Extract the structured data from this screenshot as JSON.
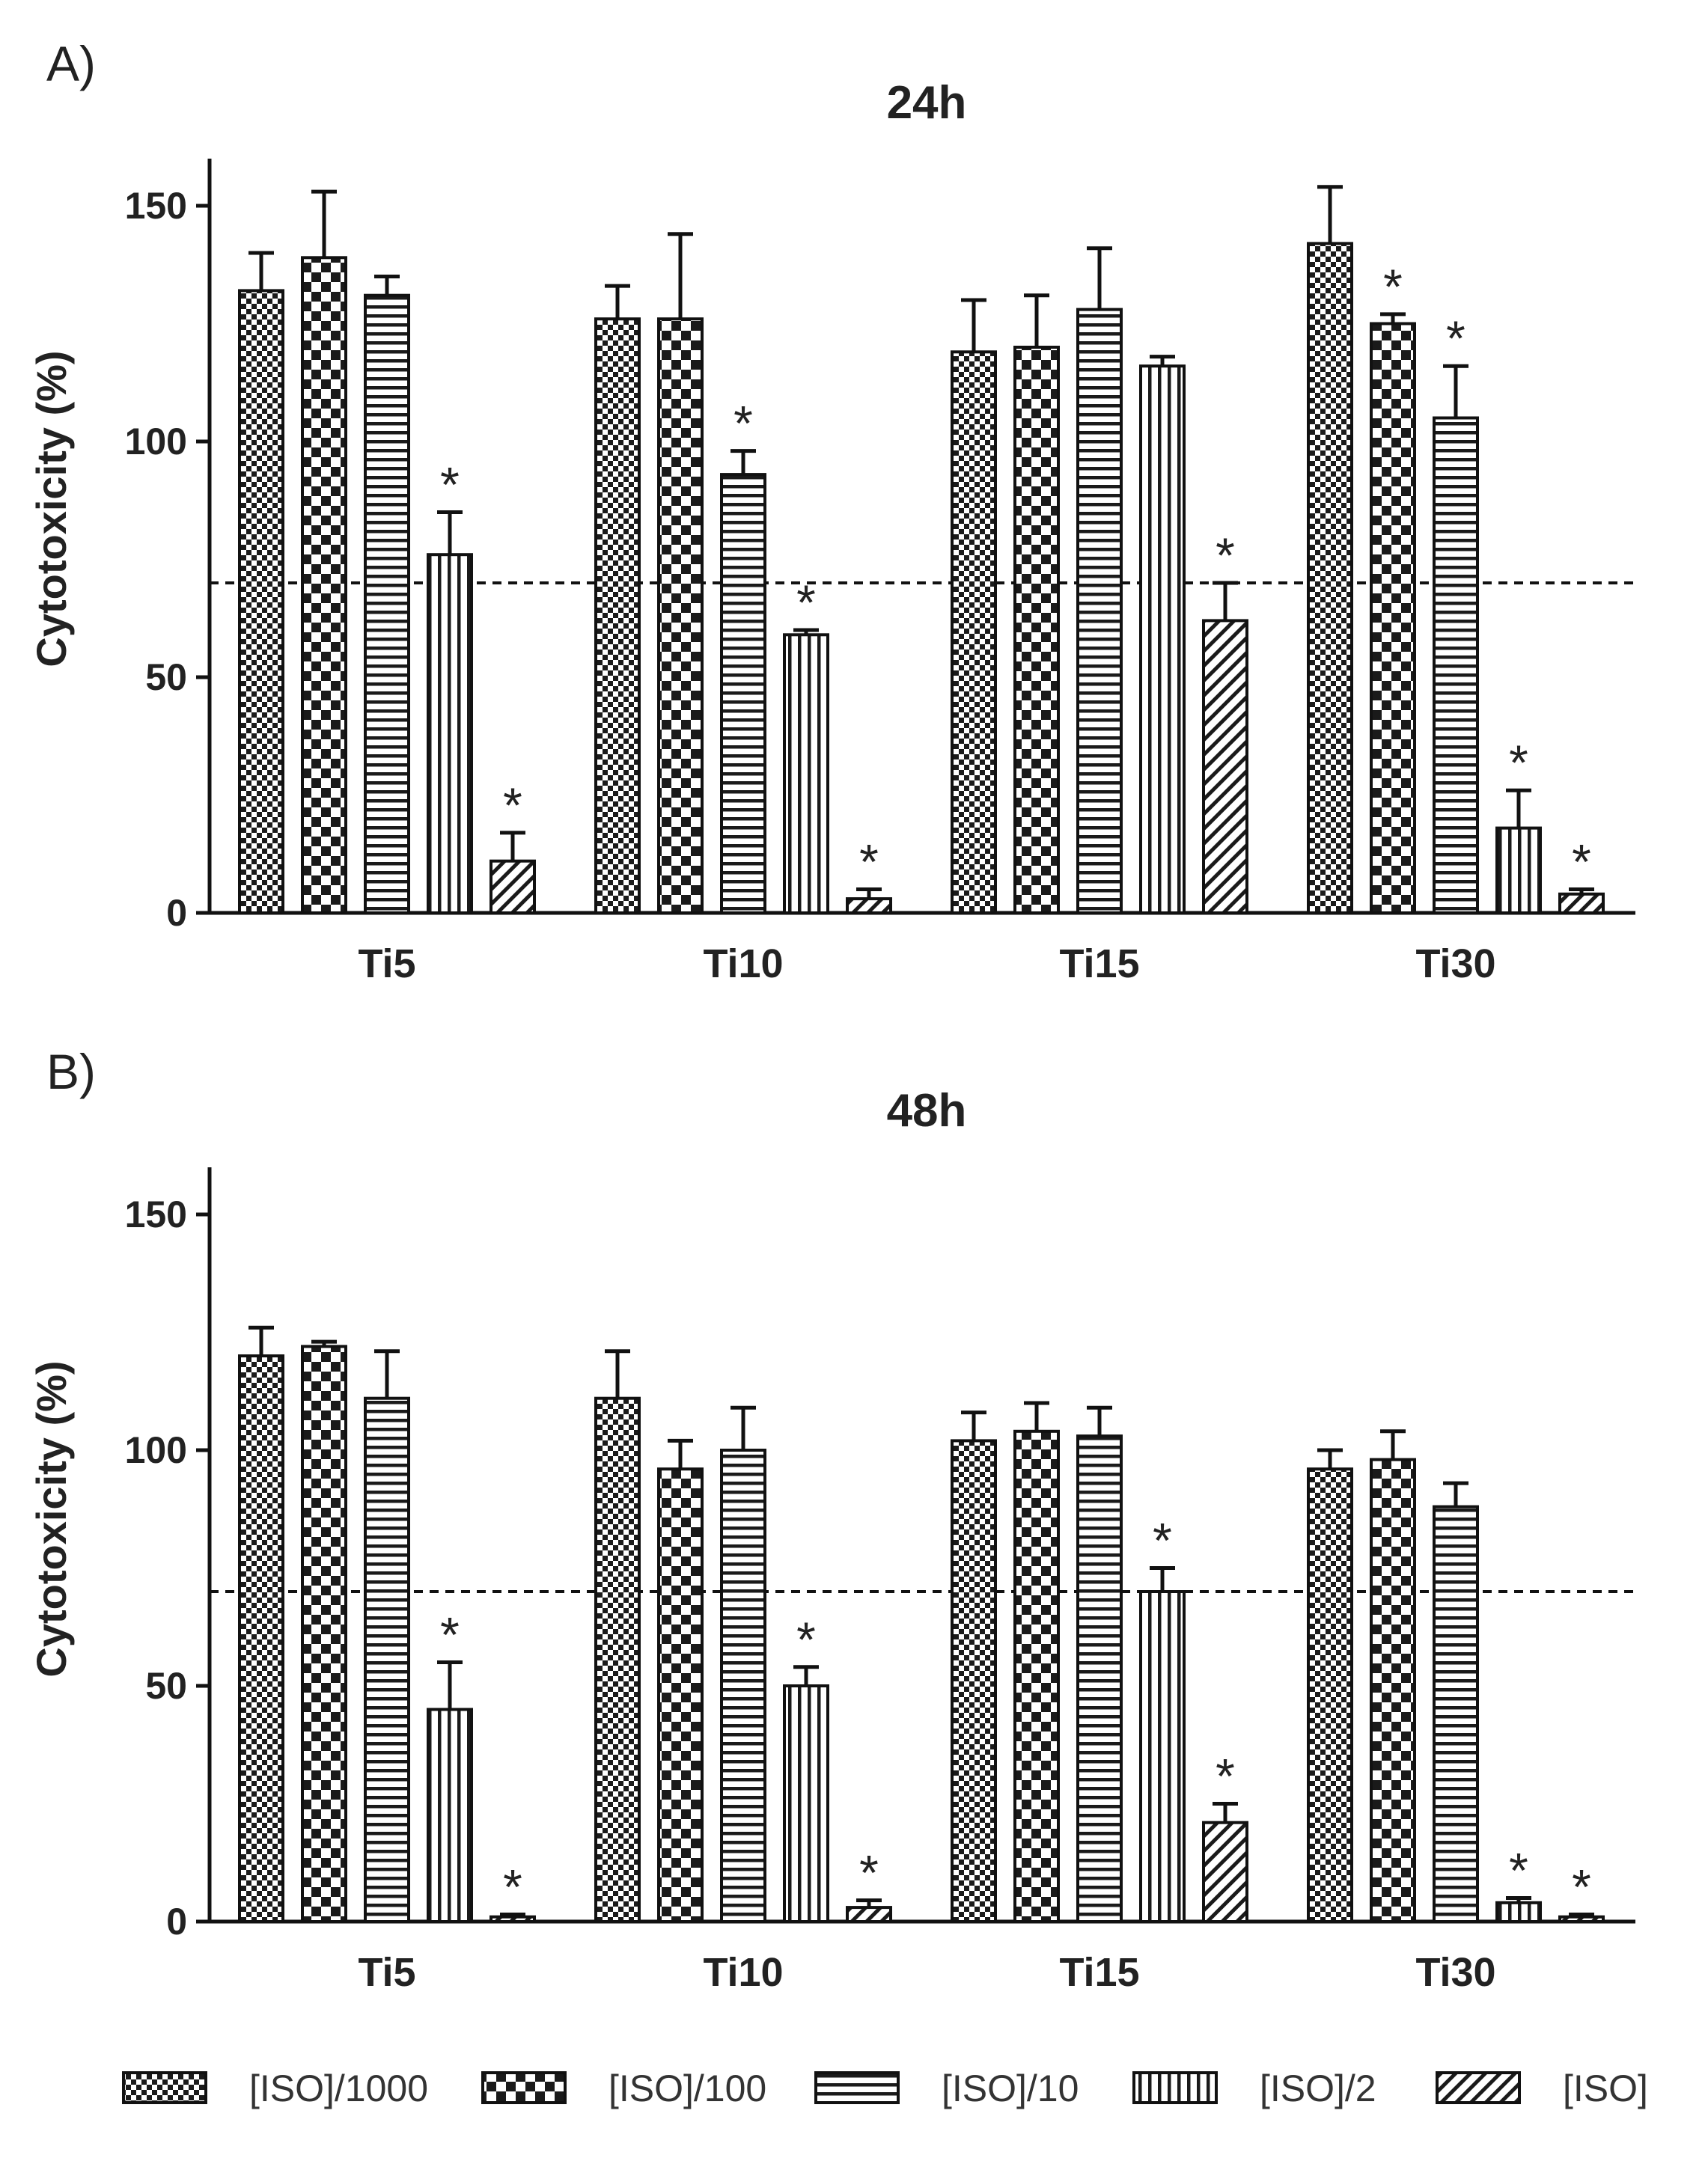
{
  "chart_data": [
    {
      "type": "bar",
      "panel_label": "A)",
      "title": "24h",
      "xlabel": "",
      "ylabel": "Cytotoxicity (%)",
      "ylim": [
        0,
        160
      ],
      "yticks": [
        0,
        50,
        100,
        150
      ],
      "threshold": 70,
      "categories": [
        "Ti5",
        "Ti10",
        "Ti15",
        "Ti30"
      ],
      "series": [
        {
          "name": "[ISO]/1000",
          "pattern": "fine-check",
          "values": [
            132,
            126,
            119,
            142
          ],
          "errors": [
            8,
            7,
            11,
            12
          ],
          "significant": [
            false,
            false,
            false,
            false
          ]
        },
        {
          "name": "[ISO]/100",
          "pattern": "coarse-check",
          "values": [
            139,
            126,
            120,
            125
          ],
          "errors": [
            14,
            18,
            11,
            2
          ],
          "significant": [
            false,
            false,
            false,
            true
          ]
        },
        {
          "name": "[ISO]/10",
          "pattern": "hstripe",
          "values": [
            131,
            93,
            128,
            105
          ],
          "errors": [
            4,
            5,
            13,
            11
          ],
          "significant": [
            false,
            true,
            false,
            true
          ]
        },
        {
          "name": "[ISO]/2",
          "pattern": "vstripe",
          "values": [
            76,
            59,
            116,
            18
          ],
          "errors": [
            9,
            1,
            2,
            8
          ],
          "significant": [
            true,
            true,
            false,
            true
          ]
        },
        {
          "name": "[ISO]",
          "pattern": "diagonal",
          "values": [
            11,
            3,
            62,
            4
          ],
          "errors": [
            6,
            2,
            8,
            1
          ],
          "significant": [
            true,
            true,
            true,
            true
          ]
        }
      ]
    },
    {
      "type": "bar",
      "panel_label": "B)",
      "title": "48h",
      "xlabel": "",
      "ylabel": "Cytotoxicity (%)",
      "ylim": [
        0,
        160
      ],
      "yticks": [
        0,
        50,
        100,
        150
      ],
      "threshold": 70,
      "categories": [
        "Ti5",
        "Ti10",
        "Ti15",
        "Ti30"
      ],
      "series": [
        {
          "name": "[ISO]/1000",
          "pattern": "fine-check",
          "values": [
            120,
            111,
            102,
            96
          ],
          "errors": [
            6,
            10,
            6,
            4
          ],
          "significant": [
            false,
            false,
            false,
            false
          ]
        },
        {
          "name": "[ISO]/100",
          "pattern": "coarse-check",
          "values": [
            122,
            96,
            104,
            98
          ],
          "errors": [
            1,
            6,
            6,
            6
          ],
          "significant": [
            false,
            false,
            false,
            false
          ]
        },
        {
          "name": "[ISO]/10",
          "pattern": "hstripe",
          "values": [
            111,
            100,
            103,
            88
          ],
          "errors": [
            10,
            9,
            6,
            5
          ],
          "significant": [
            false,
            false,
            false,
            false
          ]
        },
        {
          "name": "[ISO]/2",
          "pattern": "vstripe",
          "values": [
            45,
            50,
            70,
            4
          ],
          "errors": [
            10,
            4,
            5,
            1
          ],
          "significant": [
            true,
            true,
            true,
            true
          ]
        },
        {
          "name": "[ISO]",
          "pattern": "diagonal",
          "values": [
            1,
            3,
            21,
            1
          ],
          "errors": [
            0.5,
            1.5,
            4,
            0.5
          ],
          "significant": [
            true,
            true,
            true,
            true
          ]
        }
      ]
    }
  ],
  "legend": {
    "position": "bottom",
    "items": [
      {
        "label": "[ISO]/1000",
        "pattern": "fine-check"
      },
      {
        "label": "[ISO]/100",
        "pattern": "coarse-check"
      },
      {
        "label": "[ISO]/10",
        "pattern": "hstripe"
      },
      {
        "label": "[ISO]/2",
        "pattern": "vstripe"
      },
      {
        "label": "[ISO]",
        "pattern": "diagonal"
      }
    ]
  },
  "significance_marker": "*"
}
